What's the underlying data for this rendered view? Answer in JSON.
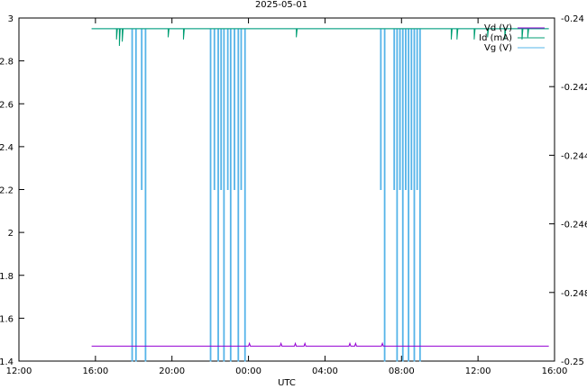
{
  "chart_data": {
    "type": "line",
    "title": "2025-05-01",
    "xlabel": "UTC",
    "ylabel": "",
    "y2label": "",
    "grid": false,
    "legend_position": "top-right",
    "x_unit": "hours since 12:00",
    "x_ticks": [
      {
        "value": 0,
        "label": "12:00"
      },
      {
        "value": 4,
        "label": "16:00"
      },
      {
        "value": 8,
        "label": "20:00"
      },
      {
        "value": 12,
        "label": "00:00"
      },
      {
        "value": 16,
        "label": "04:00"
      },
      {
        "value": 20,
        "label": "08:00"
      },
      {
        "value": 24,
        "label": "12:00"
      },
      {
        "value": 28,
        "label": "16:00"
      }
    ],
    "xlim": [
      0,
      28
    ],
    "ylim": [
      1.4,
      3.0
    ],
    "y_ticks": [
      "1.4",
      "1.6",
      "1.8",
      "2",
      "2.2",
      "2.4",
      "2.6",
      "2.8",
      "3"
    ],
    "y2lim": [
      -0.25,
      -0.24
    ],
    "y2_ticks": [
      "-0.25",
      "-0.248",
      "-0.246",
      "-0.244",
      "-0.242",
      "-0.24"
    ],
    "series": [
      {
        "name": "Vd (V)",
        "color": "#9400d3",
        "axis": "y",
        "baseline": 1.47,
        "blips": [
          12.05,
          13.7,
          14.45,
          14.95,
          17.3,
          17.6,
          19.0
        ]
      },
      {
        "name": "Id (mA)",
        "color": "#009e73",
        "axis": "y",
        "baseline": 2.95,
        "dips": [
          {
            "x": 5.1,
            "y": 2.9
          },
          {
            "x": 5.25,
            "y": 2.87
          },
          {
            "x": 5.4,
            "y": 2.89
          },
          {
            "x": 7.8,
            "y": 2.91
          },
          {
            "x": 8.6,
            "y": 2.9
          },
          {
            "x": 14.5,
            "y": 2.91
          },
          {
            "x": 22.6,
            "y": 2.9
          },
          {
            "x": 22.9,
            "y": 2.9
          },
          {
            "x": 23.8,
            "y": 2.9
          },
          {
            "x": 24.5,
            "y": 2.91
          },
          {
            "x": 25.4,
            "y": 2.9
          },
          {
            "x": 26.3,
            "y": 2.9
          },
          {
            "x": 26.6,
            "y": 2.91
          }
        ]
      },
      {
        "name": "Vg (V)",
        "color": "#56b4e9",
        "axis": "y",
        "baseline": 2.95,
        "x_start": 3.8,
        "x_end": 27.7,
        "spikes": [
          {
            "x": 5.9,
            "y": 1.4
          },
          {
            "x": 6.1,
            "y": 1.4
          },
          {
            "x": 6.4,
            "y": 2.2
          },
          {
            "x": 6.6,
            "y": 1.4
          },
          {
            "x": 10.0,
            "y": 1.4
          },
          {
            "x": 10.2,
            "y": 2.2
          },
          {
            "x": 10.4,
            "y": 1.4
          },
          {
            "x": 10.55,
            "y": 2.2
          },
          {
            "x": 10.7,
            "y": 1.4
          },
          {
            "x": 10.9,
            "y": 2.2
          },
          {
            "x": 11.05,
            "y": 1.4
          },
          {
            "x": 11.25,
            "y": 2.2
          },
          {
            "x": 11.45,
            "y": 1.4
          },
          {
            "x": 11.6,
            "y": 2.2
          },
          {
            "x": 11.8,
            "y": 1.4
          },
          {
            "x": 18.9,
            "y": 2.2
          },
          {
            "x": 19.1,
            "y": 1.4
          },
          {
            "x": 19.6,
            "y": 2.2
          },
          {
            "x": 19.75,
            "y": 1.4
          },
          {
            "x": 19.9,
            "y": 2.2
          },
          {
            "x": 20.05,
            "y": 1.4
          },
          {
            "x": 20.2,
            "y": 2.2
          },
          {
            "x": 20.35,
            "y": 1.4
          },
          {
            "x": 20.5,
            "y": 2.2
          },
          {
            "x": 20.65,
            "y": 1.4
          },
          {
            "x": 20.8,
            "y": 2.2
          },
          {
            "x": 20.95,
            "y": 1.4
          }
        ]
      }
    ]
  }
}
